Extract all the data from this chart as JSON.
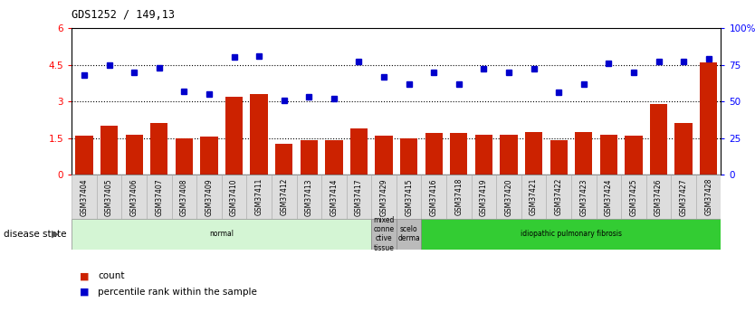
{
  "title": "GDS1252 / 149,13",
  "samples": [
    "GSM37404",
    "GSM37405",
    "GSM37406",
    "GSM37407",
    "GSM37408",
    "GSM37409",
    "GSM37410",
    "GSM37411",
    "GSM37412",
    "GSM37413",
    "GSM37414",
    "GSM37417",
    "GSM37429",
    "GSM37415",
    "GSM37416",
    "GSM37418",
    "GSM37419",
    "GSM37420",
    "GSM37421",
    "GSM37422",
    "GSM37423",
    "GSM37424",
    "GSM37425",
    "GSM37426",
    "GSM37427",
    "GSM37428"
  ],
  "bar_values": [
    1.6,
    2.0,
    1.65,
    2.1,
    1.5,
    1.55,
    3.2,
    3.3,
    1.25,
    1.4,
    1.4,
    1.9,
    1.6,
    1.5,
    1.7,
    1.7,
    1.65,
    1.65,
    1.75,
    1.4,
    1.75,
    1.65,
    1.6,
    2.9,
    2.1,
    4.6
  ],
  "dot_values_pct": [
    68,
    75,
    70,
    73,
    57,
    55,
    80,
    81,
    51,
    53,
    52,
    77,
    67,
    62,
    70,
    62,
    72,
    70,
    72,
    56,
    62,
    76,
    70,
    77,
    77,
    79
  ],
  "bar_color": "#cc2200",
  "dot_color": "#0000cc",
  "ylim_left": [
    0,
    6
  ],
  "ylim_right": [
    0,
    100
  ],
  "yticks_left": [
    0,
    1.5,
    3.0,
    4.5,
    6.0
  ],
  "yticks_left_labels": [
    "0",
    "1.5",
    "3",
    "4.5",
    "6"
  ],
  "yticks_right": [
    0,
    25,
    50,
    75,
    100
  ],
  "yticks_right_labels": [
    "0",
    "25",
    "50",
    "75",
    "100%"
  ],
  "hlines": [
    1.5,
    3.0,
    4.5
  ],
  "disease_groups": [
    {
      "label": "normal",
      "start": 0,
      "end": 12,
      "color": "#d4f5d4"
    },
    {
      "label": "mixed\nconne\nctive\ntissue",
      "start": 12,
      "end": 13,
      "color": "#bbbbbb"
    },
    {
      "label": "scelo\nderma",
      "start": 13,
      "end": 14,
      "color": "#bbbbbb"
    },
    {
      "label": "idiopathic pulmonary fibrosis",
      "start": 14,
      "end": 26,
      "color": "#33cc33"
    }
  ],
  "legend_count_label": "count",
  "legend_pct_label": "percentile rank within the sample",
  "disease_state_label": "disease state",
  "bg_color": "#ffffff",
  "plot_bg_color": "#ffffff"
}
